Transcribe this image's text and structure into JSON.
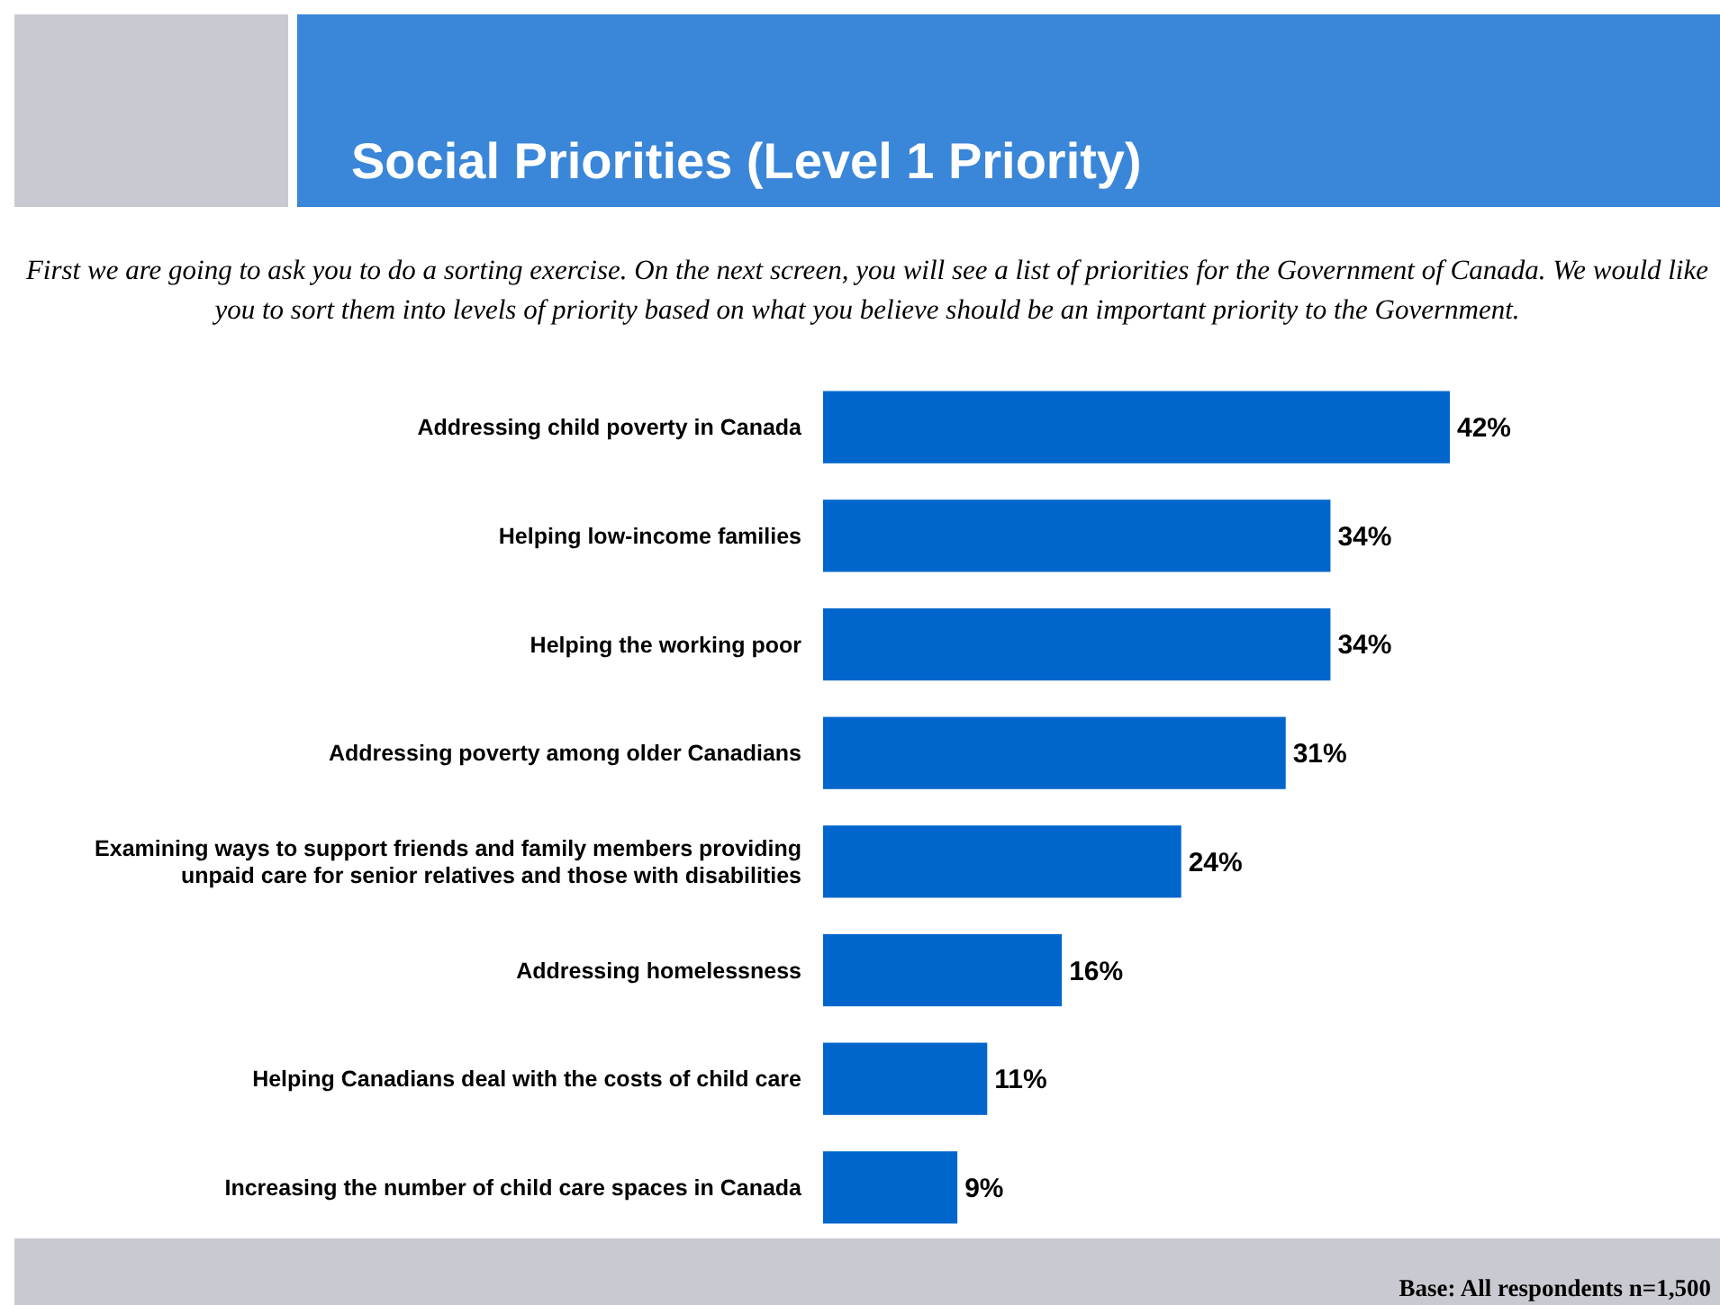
{
  "chart_data": {
    "type": "bar",
    "orientation": "horizontal",
    "title": "Social Priorities (Level 1 Priority)",
    "subtitle": "First we are going to ask you to do a sorting exercise. On the next screen, you will see a list of priorities for the Government of Canada. We would like you to sort them into levels of priority based on what you believe should be an important priority to the Government.",
    "categories": [
      "Addressing child poverty in Canada",
      "Helping low-income families",
      "Helping the working poor",
      "Addressing poverty among older Canadians",
      "Examining ways to support friends and family members providing unpaid care for senior relatives and those with disabilities",
      "Addressing homelessness",
      "Helping Canadians deal with the costs of child care",
      "Increasing the number of child care spaces in Canada"
    ],
    "values": [
      42,
      34,
      34,
      31,
      24,
      16,
      11,
      9
    ],
    "value_labels": [
      "42%",
      "34%",
      "34%",
      "31%",
      "24%",
      "16%",
      "11%",
      "9%"
    ],
    "color": "#0066cc",
    "annotations": [
      "Base: All respondents n=1,500"
    ]
  }
}
